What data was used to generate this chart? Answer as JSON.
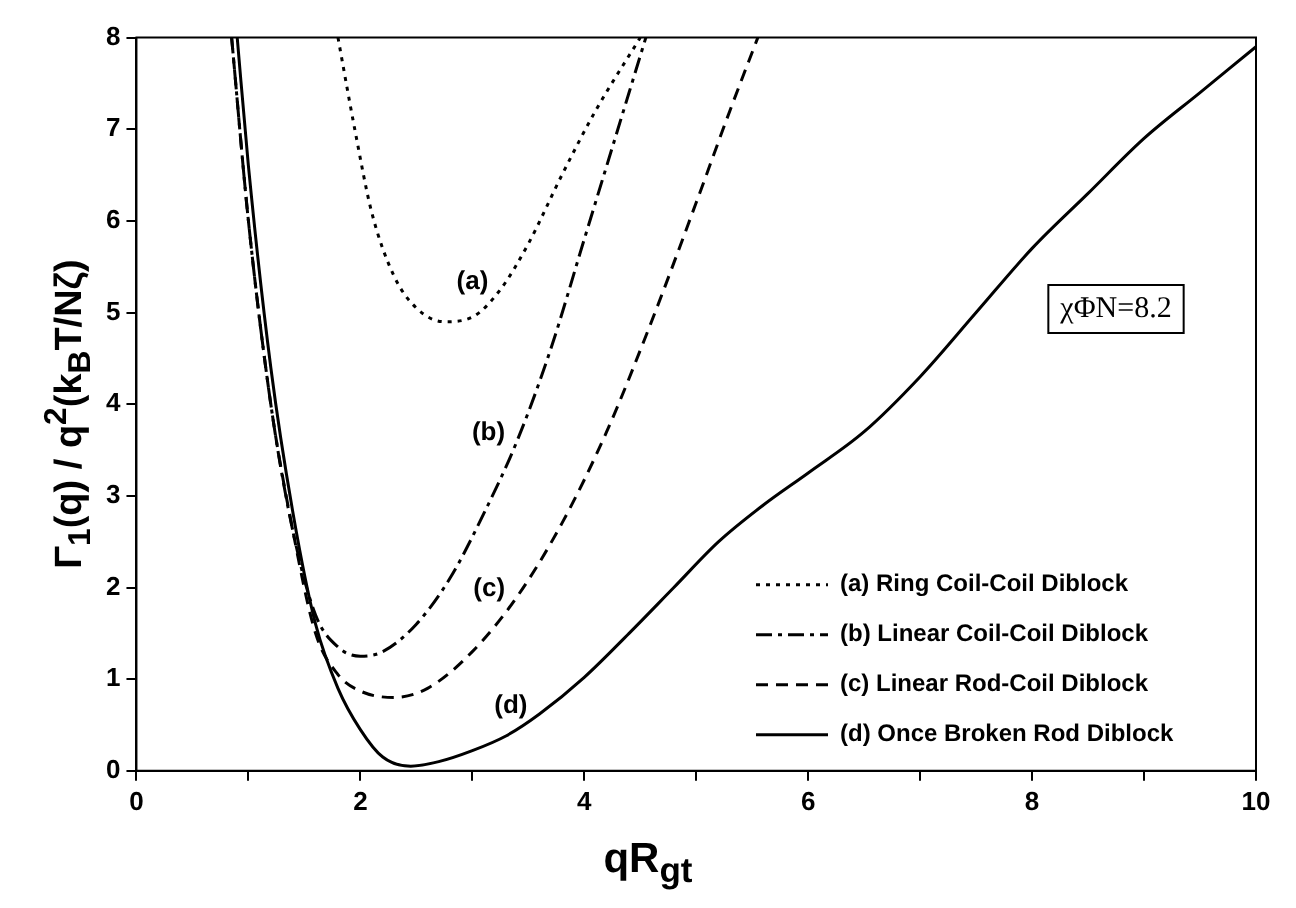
{
  "chart_data": {
    "type": "line",
    "xlabel": "qR$_{gt}$",
    "ylabel": "Γ$_{1}$(q) / q$^{2}$(k$_{B}$T/Nζ)",
    "xlim": [
      0,
      10
    ],
    "xticks": [
      0,
      {
        "value": 1,
        "label": null
      },
      2,
      {
        "value": 3,
        "label": null
      },
      4,
      {
        "value": 5,
        "label": null
      },
      6,
      {
        "value": 7,
        "label": null
      },
      8,
      {
        "value": 9,
        "label": null
      },
      10
    ],
    "ylim": [
      0,
      8
    ],
    "yticks": [
      0,
      1,
      2,
      3,
      4,
      5,
      6,
      7,
      8
    ],
    "grid": false,
    "legend": "bottom right",
    "marker": "none",
    "annotations": [
      {
        "text": "(a)",
        "x": 3.25,
        "y": 5.25
      },
      {
        "text": "(b)",
        "x": 3.4,
        "y": 3.6
      },
      {
        "text": "(c)",
        "x": 3.4,
        "y": 1.9
      },
      {
        "text": "(d)",
        "x": 3.6,
        "y": 0.62
      },
      "χΦN=8.2"
    ],
    "series": [
      {
        "name": "(a) Ring Coil-Coil Diblock",
        "color": "#000000",
        "line_style": "dotted",
        "x": [
          1.8,
          1.95,
          2.1,
          2.3,
          2.5,
          2.75,
          3.0,
          3.25,
          3.5,
          3.8,
          4.1,
          4.5
        ],
        "values": [
          8,
          7,
          6.1,
          5.4,
          5.05,
          4.9,
          4.95,
          5.25,
          5.75,
          6.5,
          7.2,
          8
        ]
      },
      {
        "name": "(b) Linear Coil-Coil Diblock",
        "color": "#000000",
        "line_style": "dashdot",
        "x": [
          0.85,
          1.0,
          1.2,
          1.4,
          1.6,
          1.8,
          2.0,
          2.2,
          2.5,
          2.8,
          3.1,
          3.4,
          3.7,
          4.0,
          4.3,
          4.55
        ],
        "values": [
          8,
          6,
          4,
          2.6,
          1.7,
          1.35,
          1.25,
          1.3,
          1.6,
          2.1,
          2.8,
          3.6,
          4.6,
          5.8,
          7.0,
          8
        ]
      },
      {
        "name": "(c) Linear Rod-Coil Diblock",
        "color": "#000000",
        "line_style": "dashed",
        "x": [
          0.85,
          1.0,
          1.2,
          1.4,
          1.6,
          1.8,
          2.0,
          2.3,
          2.6,
          3.0,
          3.4,
          3.8,
          4.2,
          4.6,
          5.0,
          5.3,
          5.55
        ],
        "values": [
          8,
          6,
          4,
          2.6,
          1.5,
          1.05,
          0.87,
          0.8,
          0.9,
          1.3,
          1.9,
          2.7,
          3.7,
          4.9,
          6.2,
          7.2,
          8
        ]
      },
      {
        "name": "(d) Once Broken Rod Diblock",
        "color": "#000000",
        "line_style": "solid",
        "x": [
          0.9,
          1.0,
          1.2,
          1.4,
          1.6,
          1.8,
          2.0,
          2.2,
          2.45,
          2.7,
          3.0,
          3.3,
          3.6,
          4.0,
          4.4,
          4.8,
          5.2,
          5.6,
          6.0,
          6.5,
          7.0,
          7.5,
          8.0,
          8.5,
          9.0,
          9.5,
          10
        ],
        "values": [
          8,
          6.6,
          4.4,
          2.8,
          1.6,
          0.9,
          0.45,
          0.15,
          0.05,
          0.1,
          0.22,
          0.38,
          0.62,
          1.02,
          1.5,
          2.0,
          2.5,
          2.9,
          3.25,
          3.7,
          4.3,
          5.0,
          5.7,
          6.3,
          6.9,
          7.4,
          7.9
        ]
      }
    ]
  }
}
